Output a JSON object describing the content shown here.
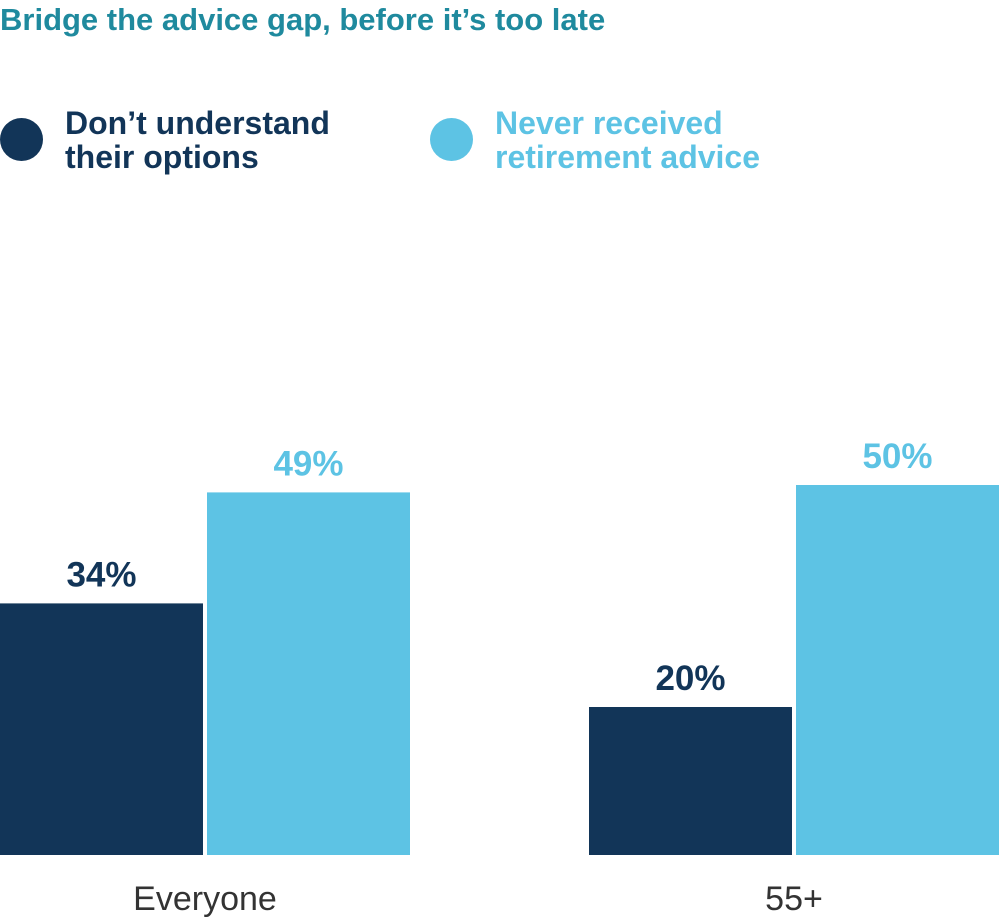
{
  "title": "Bridge the advice gap, before it’s too late",
  "colors": {
    "title": "#1f8a9e",
    "dark_series": "#123558",
    "light_series": "#5dc3e4",
    "category_label": "#333333"
  },
  "legend": [
    {
      "label": "Don’t understand\ntheir options",
      "color": "#123558",
      "text_color": "#123558"
    },
    {
      "label": "Never received\nretirement advice",
      "color": "#5dc3e4",
      "text_color": "#5dc3e4"
    }
  ],
  "chart_data": {
    "type": "bar",
    "title": "Bridge the advice gap, before it’s too late",
    "categories": [
      "Everyone",
      "55+"
    ],
    "series": [
      {
        "name": "Don’t understand their options",
        "values": [
          34,
          20
        ],
        "labels": [
          "34%",
          "20%"
        ],
        "color": "#123558"
      },
      {
        "name": "Never received retirement advice",
        "values": [
          49,
          50
        ],
        "labels": [
          "49%",
          "50%"
        ],
        "color": "#5dc3e4"
      }
    ],
    "xlabel": "",
    "ylabel": "",
    "ylim": [
      0,
      75
    ],
    "grid": false,
    "legend_position": "top"
  }
}
